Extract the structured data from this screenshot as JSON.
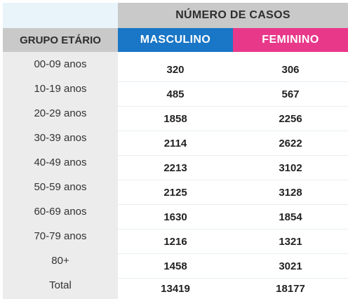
{
  "header": {
    "casos": "NÚMERO DE CASOS",
    "grupo": "GRUPO ETÁRIO",
    "masculino": "MASCULINO",
    "feminino": "FEMININO"
  },
  "colors": {
    "header_gray": "#c9c9c9",
    "masculino": "#1a76c6",
    "feminino": "#e8388a",
    "age_bg": "#ececec"
  },
  "rows": [
    {
      "age": "00-09 anos",
      "m": "320",
      "f": "306"
    },
    {
      "age": "10-19 anos",
      "m": "485",
      "f": "567"
    },
    {
      "age": "20-29 anos",
      "m": "1858",
      "f": "2256"
    },
    {
      "age": "30-39 anos",
      "m": "2114",
      "f": "2622"
    },
    {
      "age": "40-49 anos",
      "m": "2213",
      "f": "3102"
    },
    {
      "age": "50-59 anos",
      "m": "2125",
      "f": "3128"
    },
    {
      "age": "60-69 anos",
      "m": "1630",
      "f": "1854"
    },
    {
      "age": "70-79 anos",
      "m": "1216",
      "f": "1321"
    },
    {
      "age": "80+",
      "m": "1458",
      "f": "3021"
    },
    {
      "age": "Total",
      "m": "13419",
      "f": "18177"
    }
  ]
}
